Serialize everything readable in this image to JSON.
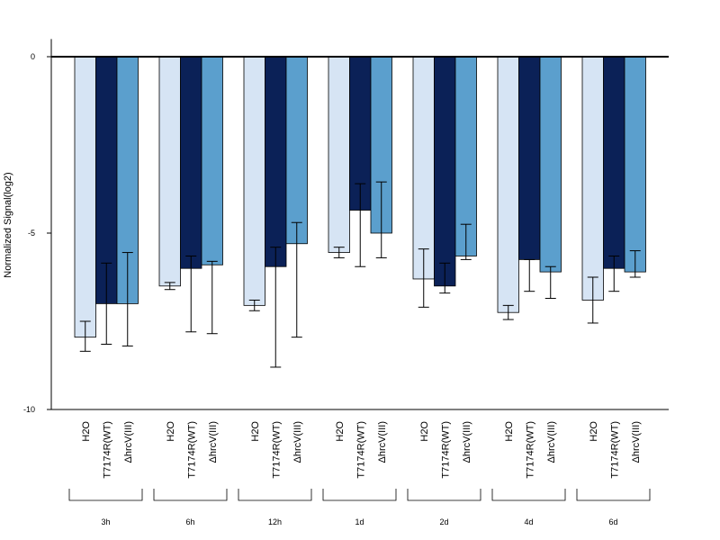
{
  "chart_data": {
    "type": "bar",
    "ylabel": "Normalized Signal(log2)",
    "ylim": [
      -10,
      0.5
    ],
    "yticks": [
      0,
      -5,
      -10
    ],
    "ytick_labels": [
      "0",
      "-5",
      "-10"
    ],
    "bar_labels": [
      "H2O",
      "T7174R(WT)",
      "ΔhrcV(III)"
    ],
    "groups": [
      "3h",
      "6h",
      "12h",
      "1d",
      "2d",
      "4d",
      "6d"
    ],
    "series": [
      {
        "label": "H2O",
        "color": "#d6e4f4",
        "values": [
          -7.95,
          -6.5,
          -7.05,
          -5.55,
          -6.3,
          -7.25,
          -6.9
        ],
        "err_low": [
          -8.35,
          -6.6,
          -7.2,
          -5.7,
          -7.1,
          -7.45,
          -7.55
        ],
        "err_high": [
          -7.5,
          -6.4,
          -6.9,
          -5.4,
          -5.45,
          -7.05,
          -6.25
        ]
      },
      {
        "label": "T7174R(WT)",
        "color": "#0b2157",
        "values": [
          -7.0,
          -6.0,
          -5.95,
          -4.35,
          -6.5,
          -5.75,
          -6.0
        ],
        "err_low": [
          -8.15,
          -7.8,
          -8.8,
          -5.95,
          -6.7,
          -6.65,
          -6.65
        ],
        "err_high": [
          -5.85,
          -5.65,
          -5.4,
          -3.6,
          -5.85,
          -5.75,
          -5.65
        ]
      },
      {
        "label": "ΔhrcV(III)",
        "color": "#5b9fcd",
        "values": [
          -7.0,
          -5.9,
          -5.3,
          -5.0,
          -5.65,
          -6.1,
          -6.1
        ],
        "err_low": [
          -8.2,
          -7.85,
          -7.95,
          -5.7,
          -5.75,
          -6.85,
          -6.25
        ],
        "err_high": [
          -5.55,
          -5.8,
          -4.7,
          -3.55,
          -4.75,
          -5.95,
          -5.5
        ]
      }
    ],
    "zero_line": true,
    "grid": false,
    "legend": "none"
  }
}
